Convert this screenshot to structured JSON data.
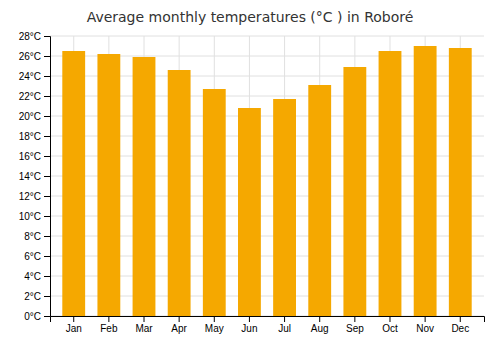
{
  "chart_data": {
    "type": "bar",
    "title": "Average monthly temperatures (°C ) in Roboré",
    "categories": [
      "Jan",
      "Feb",
      "Mar",
      "Apr",
      "May",
      "Jun",
      "Jul",
      "Aug",
      "Sep",
      "Oct",
      "Nov",
      "Dec"
    ],
    "values": [
      26.5,
      26.2,
      25.9,
      24.6,
      22.7,
      20.8,
      21.7,
      23.1,
      24.9,
      26.5,
      27.0,
      26.8
    ],
    "color": "#F5A800",
    "ylim": [
      0,
      28
    ],
    "yticks": [
      {
        "value": 0,
        "label": "0°C"
      },
      {
        "value": 2,
        "label": "2°C"
      },
      {
        "value": 4,
        "label": "4°C"
      },
      {
        "value": 6,
        "label": "6°C"
      },
      {
        "value": 8,
        "label": "8°C"
      },
      {
        "value": 10,
        "label": "10°C"
      },
      {
        "value": 12,
        "label": "12°C"
      },
      {
        "value": 14,
        "label": "14°C"
      },
      {
        "value": 16,
        "label": "16°C"
      },
      {
        "value": 18,
        "label": "18°C"
      },
      {
        "value": 20,
        "label": "20°C"
      },
      {
        "value": 22,
        "label": "22°C"
      },
      {
        "value": 24,
        "label": "24°C"
      },
      {
        "value": 26,
        "label": "26°C"
      },
      {
        "value": 28,
        "label": "28°C"
      }
    ],
    "grid": true
  }
}
